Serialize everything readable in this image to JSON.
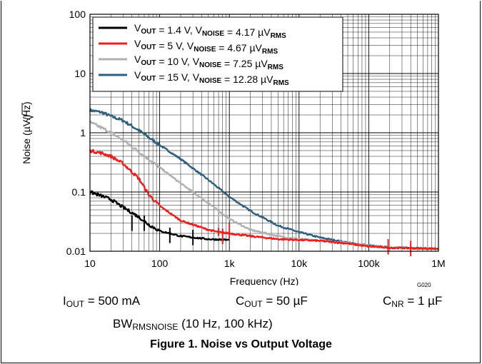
{
  "chart_data": {
    "type": "line",
    "xscale": "log",
    "yscale": "log",
    "xlim": [
      10,
      1000000
    ],
    "ylim": [
      0.01,
      100
    ],
    "xlabel": "Frequency (Hz)",
    "ylabel_prefix": "Noise (µV/",
    "ylabel_radicand": "Hz",
    "ylabel_suffix": ")",
    "x_ticks": [
      {
        "value": 10,
        "label": "10"
      },
      {
        "value": 100,
        "label": "100"
      },
      {
        "value": 1000,
        "label": "1k"
      },
      {
        "value": 10000,
        "label": "10k"
      },
      {
        "value": 100000,
        "label": "100k"
      },
      {
        "value": 1000000,
        "label": "1M"
      }
    ],
    "y_ticks": [
      {
        "value": 0.01,
        "label": "0.01"
      },
      {
        "value": 0.1,
        "label": "0.1"
      },
      {
        "value": 1,
        "label": "1"
      },
      {
        "value": 10,
        "label": "10"
      },
      {
        "value": 100,
        "label": "100"
      }
    ],
    "grid": true,
    "legend_position": "top-left",
    "legend": [
      {
        "a": "V",
        "a_sub": "OUT",
        "b": " = 1.4 V, V",
        "b_sub": "NOISE",
        "c": " = 4.17 µV",
        "c_sub": "RMS",
        "color": "#000000"
      },
      {
        "a": "V",
        "a_sub": "OUT",
        "b": " = 5 V, V",
        "b_sub": "NOISE",
        "c": " = 4.67 µV",
        "c_sub": "RMS",
        "color": "#ee1c1c"
      },
      {
        "a": "V",
        "a_sub": "OUT",
        "b": " = 10 V, V",
        "b_sub": "NOISE",
        "c": " = 7.25 µV",
        "c_sub": "RMS",
        "color": "#b0b0b0"
      },
      {
        "a": "V",
        "a_sub": "OUT",
        "b": " = 15 V, V",
        "b_sub": "NOISE",
        "c": " = 12.28 µV",
        "c_sub": "RMS",
        "color": "#2f5f7e"
      }
    ],
    "series": [
      {
        "color": "#2f5f7e",
        "points": [
          [
            10,
            2.4
          ],
          [
            15,
            2.2
          ],
          [
            20,
            1.9
          ],
          [
            30,
            1.6
          ],
          [
            50,
            1.1
          ],
          [
            100,
            0.62
          ],
          [
            200,
            0.36
          ],
          [
            500,
            0.16
          ],
          [
            1000,
            0.083
          ],
          [
            2000,
            0.048
          ],
          [
            5000,
            0.027
          ],
          [
            10000,
            0.021
          ],
          [
            20000,
            0.017
          ],
          [
            50000,
            0.014
          ],
          [
            100000,
            0.0125
          ],
          [
            200000,
            0.0115
          ],
          [
            500000,
            0.0112
          ],
          [
            1000000,
            0.011
          ]
        ]
      },
      {
        "color": "#b0b0b0",
        "points": [
          [
            10,
            1.5
          ],
          [
            15,
            1.2
          ],
          [
            20,
            1.0
          ],
          [
            30,
            0.75
          ],
          [
            50,
            0.48
          ],
          [
            100,
            0.26
          ],
          [
            200,
            0.14
          ],
          [
            500,
            0.065
          ],
          [
            1000,
            0.035
          ],
          [
            2000,
            0.023
          ],
          [
            5000,
            0.018
          ],
          [
            10000,
            0.016
          ],
          [
            20000,
            0.015
          ],
          [
            50000,
            0.014
          ],
          [
            100000,
            0.0125
          ],
          [
            200000,
            0.0115
          ],
          [
            500000,
            0.0112
          ],
          [
            1000000,
            0.011
          ]
        ]
      },
      {
        "color": "#ee1c1c",
        "points": [
          [
            10,
            0.5
          ],
          [
            15,
            0.45
          ],
          [
            20,
            0.4
          ],
          [
            30,
            0.3
          ],
          [
            50,
            0.17
          ],
          [
            70,
            0.09
          ],
          [
            100,
            0.058
          ],
          [
            200,
            0.033
          ],
          [
            500,
            0.023
          ],
          [
            700,
            0.021
          ],
          [
            1000,
            0.02
          ],
          [
            2000,
            0.018
          ],
          [
            5000,
            0.016
          ],
          [
            10000,
            0.0155
          ],
          [
            20000,
            0.015
          ],
          [
            50000,
            0.0135
          ],
          [
            100000,
            0.012
          ],
          [
            200000,
            0.0115
          ],
          [
            500000,
            0.0112
          ],
          [
            1000000,
            0.011
          ]
        ]
      },
      {
        "color": "#000000",
        "points": [
          [
            10,
            0.1
          ],
          [
            15,
            0.085
          ],
          [
            20,
            0.075
          ],
          [
            30,
            0.055
          ],
          [
            50,
            0.038
          ],
          [
            70,
            0.028
          ],
          [
            100,
            0.022
          ],
          [
            200,
            0.018
          ],
          [
            500,
            0.016
          ],
          [
            1000,
            0.0155
          ]
        ]
      }
    ],
    "spikes": [
      {
        "color": "#ee1c1c",
        "x": 700,
        "y": 0.033
      },
      {
        "color": "#ee1c1c",
        "x": 800,
        "y": 0.024
      },
      {
        "color": "#ee1c1c",
        "x": 1000,
        "y": 0.03
      },
      {
        "color": "#b0b0b0",
        "x": 700,
        "y": 0.045
      },
      {
        "color": "#000000",
        "x": 40,
        "y": 0.04
      },
      {
        "color": "#000000",
        "x": 60,
        "y": 0.04
      },
      {
        "color": "#000000",
        "x": 140,
        "y": 0.025
      },
      {
        "color": "#000000",
        "x": 300,
        "y": 0.023
      },
      {
        "color": "#ee1c1c",
        "x": 190000,
        "y": 0.016
      },
      {
        "color": "#ee1c1c",
        "x": 400000,
        "y": 0.015
      }
    ]
  },
  "figure_id": "G020",
  "conditions": {
    "iout": {
      "a": "I",
      "sub": "OUT",
      "b": " = 500 mA"
    },
    "cout": {
      "a": "C",
      "sub": "OUT",
      "b": " = 50 µF"
    },
    "cnr": {
      "a": "C",
      "sub": "NR",
      "b": " = 1 µF"
    },
    "bw": {
      "a": "BW",
      "sub": "RMSNOISE",
      "b": " (10 Hz, 100 kHz)"
    }
  },
  "caption": "Figure 1. Noise vs Output Voltage"
}
